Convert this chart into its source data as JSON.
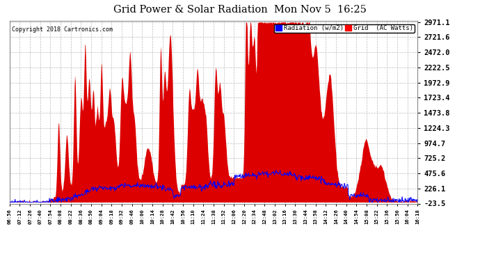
{
  "title": "Grid Power & Solar Radiation  Mon Nov 5  16:25",
  "copyright": "Copyright 2018 Cartronics.com",
  "legend_radiation": "Radiation (w/m2)",
  "legend_grid": "Grid  (AC Watts)",
  "yticks": [
    2971.1,
    2721.6,
    2472.0,
    2222.5,
    1972.9,
    1723.4,
    1473.8,
    1224.3,
    974.7,
    725.2,
    475.6,
    226.1,
    -23.5
  ],
  "ymin": -23.5,
  "ymax": 2971.1,
  "background_color": "#ffffff",
  "plot_bg_color": "#ffffff",
  "grid_color": "#bbbbbb",
  "radiation_color": "#0000ff",
  "grid_fill_color": "#dd0000",
  "xtick_labels": [
    "06:56",
    "07:12",
    "07:26",
    "07:40",
    "07:54",
    "08:08",
    "08:22",
    "08:36",
    "08:50",
    "09:04",
    "09:18",
    "09:32",
    "09:46",
    "10:00",
    "10:14",
    "10:28",
    "10:42",
    "10:56",
    "11:10",
    "11:24",
    "11:38",
    "11:52",
    "12:06",
    "12:20",
    "12:34",
    "12:48",
    "13:02",
    "13:16",
    "13:30",
    "13:44",
    "13:58",
    "14:12",
    "14:26",
    "14:40",
    "14:54",
    "15:08",
    "15:22",
    "15:36",
    "15:50",
    "16:04",
    "16:18"
  ]
}
